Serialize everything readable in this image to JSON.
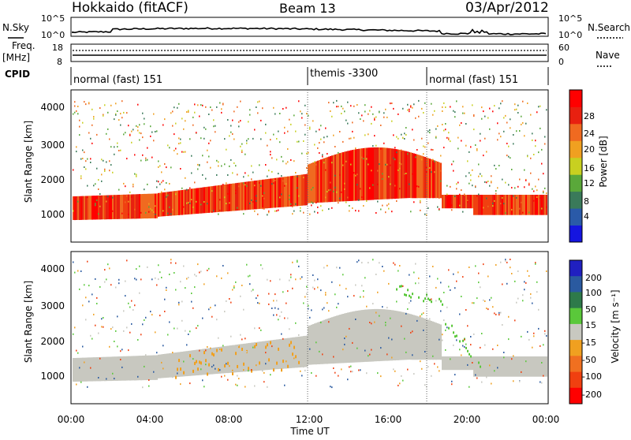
{
  "header": {
    "station": "Hokkaido (fitACF)",
    "beam": "Beam 13",
    "date": "03/Apr/2012"
  },
  "noise_panel": {
    "left_label": "N.Sky",
    "right_label": "N.Search",
    "ticks_left": [
      "10^5",
      "10^0"
    ],
    "ticks_right": [
      "10^5",
      "10^0"
    ]
  },
  "freq_panel": {
    "left_label_1": "Freq.",
    "left_label_2": "[MHz]",
    "right_label": "Nave",
    "ticks_left": [
      "18",
      "8"
    ],
    "ticks_right": [
      "60",
      "0"
    ]
  },
  "cpid_panel": {
    "label": "CPID",
    "segments": [
      "normal (fast) 151",
      "themis -3300",
      "normal (fast) 151"
    ]
  },
  "power_panel": {
    "ylabel": "Slant Range [km]",
    "yticks": [
      "1000",
      "2000",
      "3000",
      "4000"
    ],
    "colorbar_label": "Power [dB]",
    "colorbar_ticks": [
      "4",
      "8",
      "12",
      "16",
      "20",
      "24",
      "28"
    ],
    "colors": [
      "#1515e0",
      "#2a5aa8",
      "#3a7a5a",
      "#5aa83a",
      "#c8d020",
      "#f0a020",
      "#f06a20",
      "#e82010",
      "#ff0000"
    ]
  },
  "velocity_panel": {
    "ylabel": "Slant Range [km]",
    "yticks": [
      "1000",
      "2000",
      "3000",
      "4000"
    ],
    "colorbar_label": "Velocity [m s⁻¹]",
    "colorbar_ticks": [
      "200",
      "100",
      "50",
      "15",
      "-15",
      "-50",
      "-100",
      "-200"
    ],
    "colors": [
      "#2020c0",
      "#2a5aa0",
      "#2e7a4a",
      "#5ac83a",
      "#c8c8c0",
      "#f0a020",
      "#f07020",
      "#f04010",
      "#ff0000"
    ]
  },
  "xaxis": {
    "label": "Time UT",
    "ticks": [
      "00:00",
      "04:00",
      "08:00",
      "12:00",
      "16:00",
      "20:00",
      "00:00"
    ]
  }
}
